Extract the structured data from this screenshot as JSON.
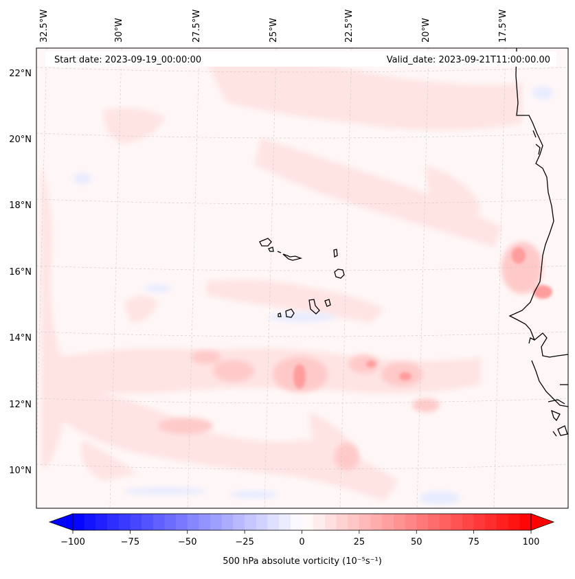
{
  "map": {
    "start_date": "Start date: 2023-09-19_00:00:00",
    "valid_date": "Valid_date: 2023-09-21T11:00:00.00",
    "lon_labels": [
      "32.5°W",
      "30°W",
      "27.5°W",
      "25°W",
      "22.5°W",
      "20°W",
      "17.5°W"
    ],
    "lat_labels": [
      "22°N",
      "20°N",
      "18°N",
      "16°N",
      "14°N",
      "12°N",
      "10°N"
    ],
    "field_colors": {
      "neutral": "#fff7f7",
      "positive_light": "#ffe3e3",
      "positive_mid": "#ffbcbc",
      "positive_strong": "#ff8f8f",
      "negative_light": "#eef0ff",
      "coast": "#000000"
    }
  },
  "colorbar": {
    "label": "500 hPa absolute vorticity (10⁻⁵s⁻¹)",
    "ticks": [
      "−100",
      "−75",
      "−50",
      "−25",
      "0",
      "25",
      "50",
      "75",
      "100"
    ],
    "min_color": "#0000ff",
    "mid_color": "#ffffff",
    "max_color": "#ff0000"
  }
}
